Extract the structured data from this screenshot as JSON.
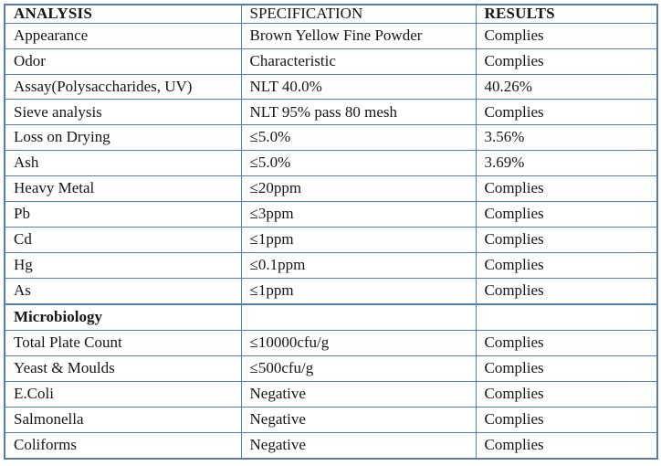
{
  "table": {
    "accent_border_color": "#4f81bd",
    "outer_border_color": "#5a7ca8",
    "text_color": "#161616",
    "columns": [
      "ANALYSIS",
      "SPECIFICATION",
      "RESULTS"
    ],
    "rows": [
      {
        "analysis": "Appearance",
        "specification": "Brown Yellow Fine Powder",
        "results": "Complies",
        "section": false
      },
      {
        "analysis": "Odor",
        "specification": "Characteristic",
        "results": "Complies",
        "section": false
      },
      {
        "analysis": "Assay(Polysaccharides, UV)",
        "specification": "NLT 40.0%",
        "results": "40.26%",
        "section": false
      },
      {
        "analysis": "Sieve analysis",
        "specification": "NLT 95% pass 80 mesh",
        "results": "Complies",
        "section": false
      },
      {
        "analysis": "Loss on Drying",
        "specification": "≤5.0%",
        "results": "3.56%",
        "section": false
      },
      {
        "analysis": "Ash",
        "specification": "≤5.0%",
        "results": "3.69%",
        "section": false
      },
      {
        "analysis": "Heavy Metal",
        "specification": "≤20ppm",
        "results": "Complies",
        "section": false
      },
      {
        "analysis": "Pb",
        "specification": "≤3ppm",
        "results": "Complies",
        "section": false
      },
      {
        "analysis": "Cd",
        "specification": "≤1ppm",
        "results": "Complies",
        "section": false
      },
      {
        "analysis": "Hg",
        "specification": "≤0.1ppm",
        "results": "Complies",
        "section": false
      },
      {
        "analysis": "As",
        "specification": "≤1ppm",
        "results": "Complies",
        "section": false
      },
      {
        "analysis": "",
        "specification": "",
        "results": "",
        "section": false
      },
      {
        "analysis": "Microbiology",
        "specification": "",
        "results": "",
        "section": true
      },
      {
        "analysis": "Total Plate Count",
        "specification": "≤10000cfu/g",
        "results": "Complies",
        "section": false
      },
      {
        "analysis": "Yeast & Moulds",
        "specification": "≤500cfu/g",
        "results": "Complies",
        "section": false
      },
      {
        "analysis": "E.Coli",
        "specification": "Negative",
        "results": "Complies",
        "section": false
      },
      {
        "analysis": "Salmonella",
        "specification": "Negative",
        "results": "Complies",
        "section": false
      },
      {
        "analysis": "Coliforms",
        "specification": "Negative",
        "results": "Complies",
        "section": false
      }
    ]
  }
}
